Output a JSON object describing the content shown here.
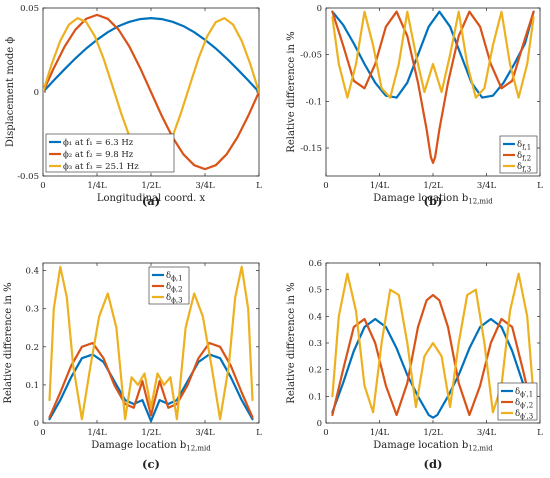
{
  "colors": {
    "s1": "#0072BD",
    "s2": "#D95319",
    "s3": "#EDB120"
  },
  "chart_data": [
    {
      "type": "line",
      "panel_label": "(a)",
      "ylabel": "Displacement mode ϕ",
      "xlabel": "Longitudinal coord. x",
      "xlim": [
        0,
        1
      ],
      "ylim": [
        -0.05,
        0.05
      ],
      "xticks": [
        0,
        0.25,
        0.5,
        0.75,
        1
      ],
      "xtick_labels": [
        "0",
        "1/4L",
        "1/2L",
        "3/4L",
        "L"
      ],
      "yticks": [
        -0.05,
        0,
        0.05
      ],
      "ytick_labels": [
        "-0.05",
        "0",
        "0.05"
      ],
      "legend_position": "bottom-left",
      "series": [
        {
          "name": "ϕ₁ at f₁ = 6.3 Hz",
          "x": [
            0,
            0.05,
            0.1,
            0.15,
            0.2,
            0.25,
            0.3,
            0.35,
            0.4,
            0.45,
            0.5,
            0.55,
            0.6,
            0.65,
            0.7,
            0.75,
            0.8,
            0.85,
            0.9,
            0.95,
            1
          ],
          "y": [
            0,
            0.0069,
            0.0136,
            0.02,
            0.0259,
            0.0311,
            0.0356,
            0.0392,
            0.0418,
            0.0434,
            0.044,
            0.0434,
            0.0418,
            0.0392,
            0.0356,
            0.0311,
            0.0259,
            0.02,
            0.0136,
            0.0069,
            0
          ]
        },
        {
          "name": "ϕ₂ at f₂ = 9.8 Hz",
          "x": [
            0,
            0.05,
            0.1,
            0.15,
            0.2,
            0.25,
            0.3,
            0.35,
            0.4,
            0.45,
            0.5,
            0.55,
            0.6,
            0.65,
            0.7,
            0.75,
            0.8,
            0.85,
            0.9,
            0.95,
            1
          ],
          "y": [
            0,
            0.0142,
            0.027,
            0.0371,
            0.0436,
            0.0459,
            0.0436,
            0.0371,
            0.027,
            0.0142,
            0,
            -0.0142,
            -0.027,
            -0.0371,
            -0.0436,
            -0.0459,
            -0.0436,
            -0.0371,
            -0.027,
            -0.0142,
            0
          ]
        },
        {
          "name": "ϕ₃ at f₃ = 25.1 Hz",
          "x": [
            0,
            0.04,
            0.08,
            0.12,
            0.16,
            0.2,
            0.24,
            0.28,
            0.32,
            0.36,
            0.4,
            0.44,
            0.48,
            0.52,
            0.56,
            0.6,
            0.64,
            0.68,
            0.72,
            0.76,
            0.8,
            0.84,
            0.88,
            0.92,
            0.96,
            1
          ],
          "y": [
            0,
            0.0164,
            0.0305,
            0.0401,
            0.044,
            0.0416,
            0.0332,
            0.02,
            0.0042,
            -0.012,
            -0.0264,
            -0.0367,
            -0.0421,
            -0.0421,
            -0.0367,
            -0.0264,
            -0.012,
            0.0042,
            0.02,
            0.0332,
            0.0416,
            0.044,
            0.0401,
            0.0305,
            0.0164,
            0
          ]
        }
      ]
    },
    {
      "type": "line",
      "panel_label": "(b)",
      "ylabel": "Relative difference in %",
      "xlabel": "Damage location b12,mid",
      "xlabel_main": "Damage location b",
      "xlabel_sub": "12,mid",
      "xlim": [
        0,
        1
      ],
      "ylim": [
        -0.18,
        0
      ],
      "xticks": [
        0,
        0.25,
        0.5,
        0.75,
        1
      ],
      "xtick_labels": [
        "0",
        "1/4L",
        "1/2L",
        "3/4L",
        "L"
      ],
      "yticks": [
        -0.15,
        -0.1,
        -0.05,
        0
      ],
      "ytick_labels": [
        "-0.15",
        "-0.1",
        "-0.05",
        "0"
      ],
      "legend_position": "bottom-right",
      "series": [
        {
          "name": "δf,1",
          "name_main": "δ",
          "name_sub": "f,1",
          "x": [
            0.03,
            0.08,
            0.13,
            0.18,
            0.23,
            0.28,
            0.33,
            0.38,
            0.43,
            0.48,
            0.53,
            0.58,
            0.63,
            0.68,
            0.73,
            0.78,
            0.83,
            0.88,
            0.93,
            0.97
          ],
          "y": [
            -0.004,
            -0.018,
            -0.038,
            -0.06,
            -0.08,
            -0.094,
            -0.096,
            -0.08,
            -0.05,
            -0.02,
            -0.004,
            -0.02,
            -0.05,
            -0.08,
            -0.096,
            -0.094,
            -0.08,
            -0.06,
            -0.038,
            -0.004
          ]
        },
        {
          "name": "δf,2",
          "name_main": "δ",
          "name_sub": "f,2",
          "x": [
            0.03,
            0.08,
            0.13,
            0.18,
            0.23,
            0.28,
            0.33,
            0.38,
            0.43,
            0.47,
            0.49,
            0.5,
            0.51,
            0.53,
            0.57,
            0.62,
            0.67,
            0.72,
            0.77,
            0.82,
            0.87,
            0.92,
            0.97
          ],
          "y": [
            -0.004,
            -0.04,
            -0.078,
            -0.086,
            -0.06,
            -0.02,
            -0.004,
            -0.03,
            -0.08,
            -0.13,
            -0.16,
            -0.166,
            -0.16,
            -0.13,
            -0.08,
            -0.03,
            -0.004,
            -0.02,
            -0.06,
            -0.086,
            -0.078,
            -0.04,
            -0.004
          ]
        },
        {
          "name": "δf,3",
          "name_main": "δ",
          "name_sub": "f,3",
          "x": [
            0.03,
            0.06,
            0.1,
            0.14,
            0.18,
            0.22,
            0.26,
            0.3,
            0.34,
            0.38,
            0.42,
            0.46,
            0.5,
            0.54,
            0.58,
            0.62,
            0.66,
            0.7,
            0.74,
            0.78,
            0.82,
            0.86,
            0.9,
            0.94,
            0.97
          ],
          "y": [
            -0.01,
            -0.06,
            -0.096,
            -0.06,
            -0.004,
            -0.04,
            -0.086,
            -0.096,
            -0.06,
            -0.004,
            -0.05,
            -0.09,
            -0.06,
            -0.09,
            -0.05,
            -0.004,
            -0.06,
            -0.096,
            -0.086,
            -0.04,
            -0.004,
            -0.06,
            -0.096,
            -0.06,
            -0.01
          ]
        }
      ]
    },
    {
      "type": "line",
      "panel_label": "(c)",
      "ylabel": "Relative difference in %",
      "xlabel": "Damage location b12,mid",
      "xlabel_main": "Damage location b",
      "xlabel_sub": "12,mid",
      "xlim": [
        0,
        1
      ],
      "ylim": [
        0,
        0.42
      ],
      "xticks": [
        0,
        0.25,
        0.5,
        0.75,
        1
      ],
      "xtick_labels": [
        "0",
        "1/4L",
        "1/2L",
        "3/4L",
        "L"
      ],
      "yticks": [
        0,
        0.1,
        0.2,
        0.3,
        0.4
      ],
      "ytick_labels": [
        "0",
        "0.1",
        "0.2",
        "0.3",
        "0.4"
      ],
      "legend_position": "top-center",
      "series": [
        {
          "name": "δϕ,1",
          "name_main": "δ",
          "name_sub": "ϕ,1",
          "x": [
            0.03,
            0.08,
            0.13,
            0.18,
            0.23,
            0.28,
            0.33,
            0.38,
            0.42,
            0.46,
            0.5,
            0.54,
            0.58,
            0.62,
            0.67,
            0.72,
            0.77,
            0.82,
            0.87,
            0.92,
            0.97
          ],
          "y": [
            0.01,
            0.06,
            0.12,
            0.17,
            0.18,
            0.16,
            0.11,
            0.06,
            0.05,
            0.06,
            0.005,
            0.06,
            0.05,
            0.06,
            0.11,
            0.16,
            0.18,
            0.17,
            0.12,
            0.06,
            0.01
          ]
        },
        {
          "name": "δϕ,2",
          "name_main": "δ",
          "name_sub": "ϕ,2",
          "x": [
            0.03,
            0.08,
            0.13,
            0.18,
            0.23,
            0.28,
            0.33,
            0.38,
            0.42,
            0.46,
            0.5,
            0.54,
            0.58,
            0.62,
            0.67,
            0.72,
            0.77,
            0.82,
            0.87,
            0.92,
            0.97
          ],
          "y": [
            0.015,
            0.08,
            0.15,
            0.2,
            0.21,
            0.17,
            0.1,
            0.05,
            0.04,
            0.11,
            0.02,
            0.11,
            0.04,
            0.05,
            0.1,
            0.17,
            0.21,
            0.2,
            0.15,
            0.08,
            0.015
          ]
        },
        {
          "name": "δϕ,3",
          "name_main": "δ",
          "name_sub": "ϕ,3",
          "x": [
            0.03,
            0.05,
            0.08,
            0.11,
            0.14,
            0.18,
            0.22,
            0.26,
            0.3,
            0.34,
            0.38,
            0.41,
            0.44,
            0.47,
            0.5,
            0.53,
            0.56,
            0.59,
            0.62,
            0.66,
            0.7,
            0.74,
            0.78,
            0.82,
            0.86,
            0.89,
            0.92,
            0.95,
            0.97
          ],
          "y": [
            0.06,
            0.3,
            0.41,
            0.33,
            0.15,
            0.01,
            0.15,
            0.28,
            0.34,
            0.25,
            0.01,
            0.12,
            0.1,
            0.13,
            0.04,
            0.13,
            0.1,
            0.12,
            0.01,
            0.25,
            0.34,
            0.28,
            0.15,
            0.01,
            0.15,
            0.33,
            0.41,
            0.3,
            0.06
          ]
        }
      ]
    },
    {
      "type": "line",
      "panel_label": "(d)",
      "ylabel": "Relative difference in %",
      "xlabel": "Damage location b12,mid",
      "xlabel_main": "Damage location b",
      "xlabel_sub": "12,mid",
      "xlim": [
        0,
        1
      ],
      "ylim": [
        0,
        0.6
      ],
      "xticks": [
        0,
        0.25,
        0.5,
        0.75,
        1
      ],
      "xtick_labels": [
        "0",
        "1/4L",
        "1/2L",
        "3/4L",
        "L"
      ],
      "yticks": [
        0,
        0.1,
        0.2,
        0.3,
        0.4,
        0.5,
        0.6
      ],
      "ytick_labels": [
        "0",
        "0.1",
        "0.2",
        "0.3",
        "0.4",
        "0.5",
        "0.6"
      ],
      "legend_position": "bottom-right",
      "series": [
        {
          "name": "δϕ′,1",
          "name_main": "δ",
          "name_sub": "ϕ′,1",
          "x": [
            0.03,
            0.08,
            0.13,
            0.18,
            0.23,
            0.28,
            0.33,
            0.38,
            0.43,
            0.48,
            0.5,
            0.52,
            0.57,
            0.62,
            0.67,
            0.72,
            0.77,
            0.82,
            0.87,
            0.92,
            0.97
          ],
          "y": [
            0.04,
            0.15,
            0.27,
            0.36,
            0.39,
            0.36,
            0.28,
            0.18,
            0.1,
            0.03,
            0.02,
            0.03,
            0.1,
            0.18,
            0.28,
            0.36,
            0.39,
            0.36,
            0.27,
            0.15,
            0.04
          ]
        },
        {
          "name": "δϕ′,2",
          "name_main": "δ",
          "name_sub": "ϕ′,2",
          "x": [
            0.03,
            0.08,
            0.13,
            0.18,
            0.23,
            0.28,
            0.33,
            0.38,
            0.43,
            0.47,
            0.5,
            0.53,
            0.57,
            0.62,
            0.67,
            0.72,
            0.77,
            0.82,
            0.87,
            0.92,
            0.97
          ],
          "y": [
            0.03,
            0.2,
            0.36,
            0.39,
            0.3,
            0.14,
            0.03,
            0.15,
            0.36,
            0.46,
            0.48,
            0.46,
            0.36,
            0.15,
            0.03,
            0.14,
            0.3,
            0.39,
            0.36,
            0.2,
            0.03
          ]
        },
        {
          "name": "δϕ′,3",
          "name_main": "δ",
          "name_sub": "ϕ′,3",
          "x": [
            0.03,
            0.06,
            0.1,
            0.14,
            0.18,
            0.22,
            0.26,
            0.3,
            0.34,
            0.38,
            0.42,
            0.46,
            0.5,
            0.54,
            0.58,
            0.62,
            0.66,
            0.7,
            0.74,
            0.78,
            0.82,
            0.86,
            0.9,
            0.94,
            0.97
          ],
          "y": [
            0.1,
            0.4,
            0.56,
            0.42,
            0.14,
            0.04,
            0.3,
            0.5,
            0.48,
            0.3,
            0.06,
            0.25,
            0.3,
            0.25,
            0.06,
            0.3,
            0.48,
            0.5,
            0.3,
            0.04,
            0.14,
            0.42,
            0.56,
            0.4,
            0.1
          ]
        }
      ]
    }
  ]
}
